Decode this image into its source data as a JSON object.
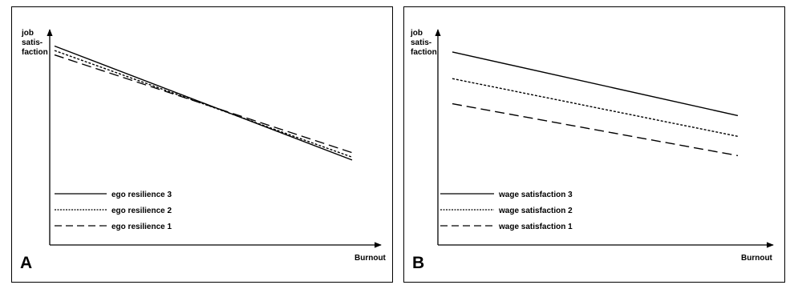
{
  "chart_data": [
    {
      "type": "line",
      "panel_label": "A",
      "xlabel": "Burnout",
      "ylabel_lines": [
        "job",
        "satis-",
        "faction"
      ],
      "ylim": [
        0,
        10
      ],
      "xlim": [
        0,
        10
      ],
      "grid": false,
      "legend_position": "bottom-left",
      "series": [
        {
          "name": "ego resilience 3",
          "style": "solid",
          "x": [
            0,
            10
          ],
          "y": [
            9.0,
            1.3
          ]
        },
        {
          "name": "ego resilience 2",
          "style": "dotted",
          "x": [
            0,
            10
          ],
          "y": [
            8.7,
            1.5
          ]
        },
        {
          "name": "ego resilience 1",
          "style": "dashed",
          "x": [
            0,
            10
          ],
          "y": [
            8.4,
            1.8
          ]
        }
      ]
    },
    {
      "type": "line",
      "panel_label": "B",
      "xlabel": "Burnout",
      "ylabel_lines": [
        "job",
        "satis-",
        "faction"
      ],
      "ylim": [
        0,
        10
      ],
      "xlim": [
        0,
        10
      ],
      "grid": false,
      "legend_position": "bottom-left",
      "series": [
        {
          "name": "wage satisfaction 3",
          "style": "solid",
          "x": [
            0,
            10
          ],
          "y": [
            8.6,
            4.3
          ]
        },
        {
          "name": "wage satisfaction 2",
          "style": "dotted",
          "x": [
            0,
            10
          ],
          "y": [
            6.8,
            2.9
          ]
        },
        {
          "name": "wage satisfaction 1",
          "style": "dashed",
          "x": [
            0,
            10
          ],
          "y": [
            5.1,
            1.6
          ]
        }
      ]
    }
  ],
  "colors": {
    "line": "#000000",
    "frame": "#000000",
    "background": "#ffffff"
  }
}
